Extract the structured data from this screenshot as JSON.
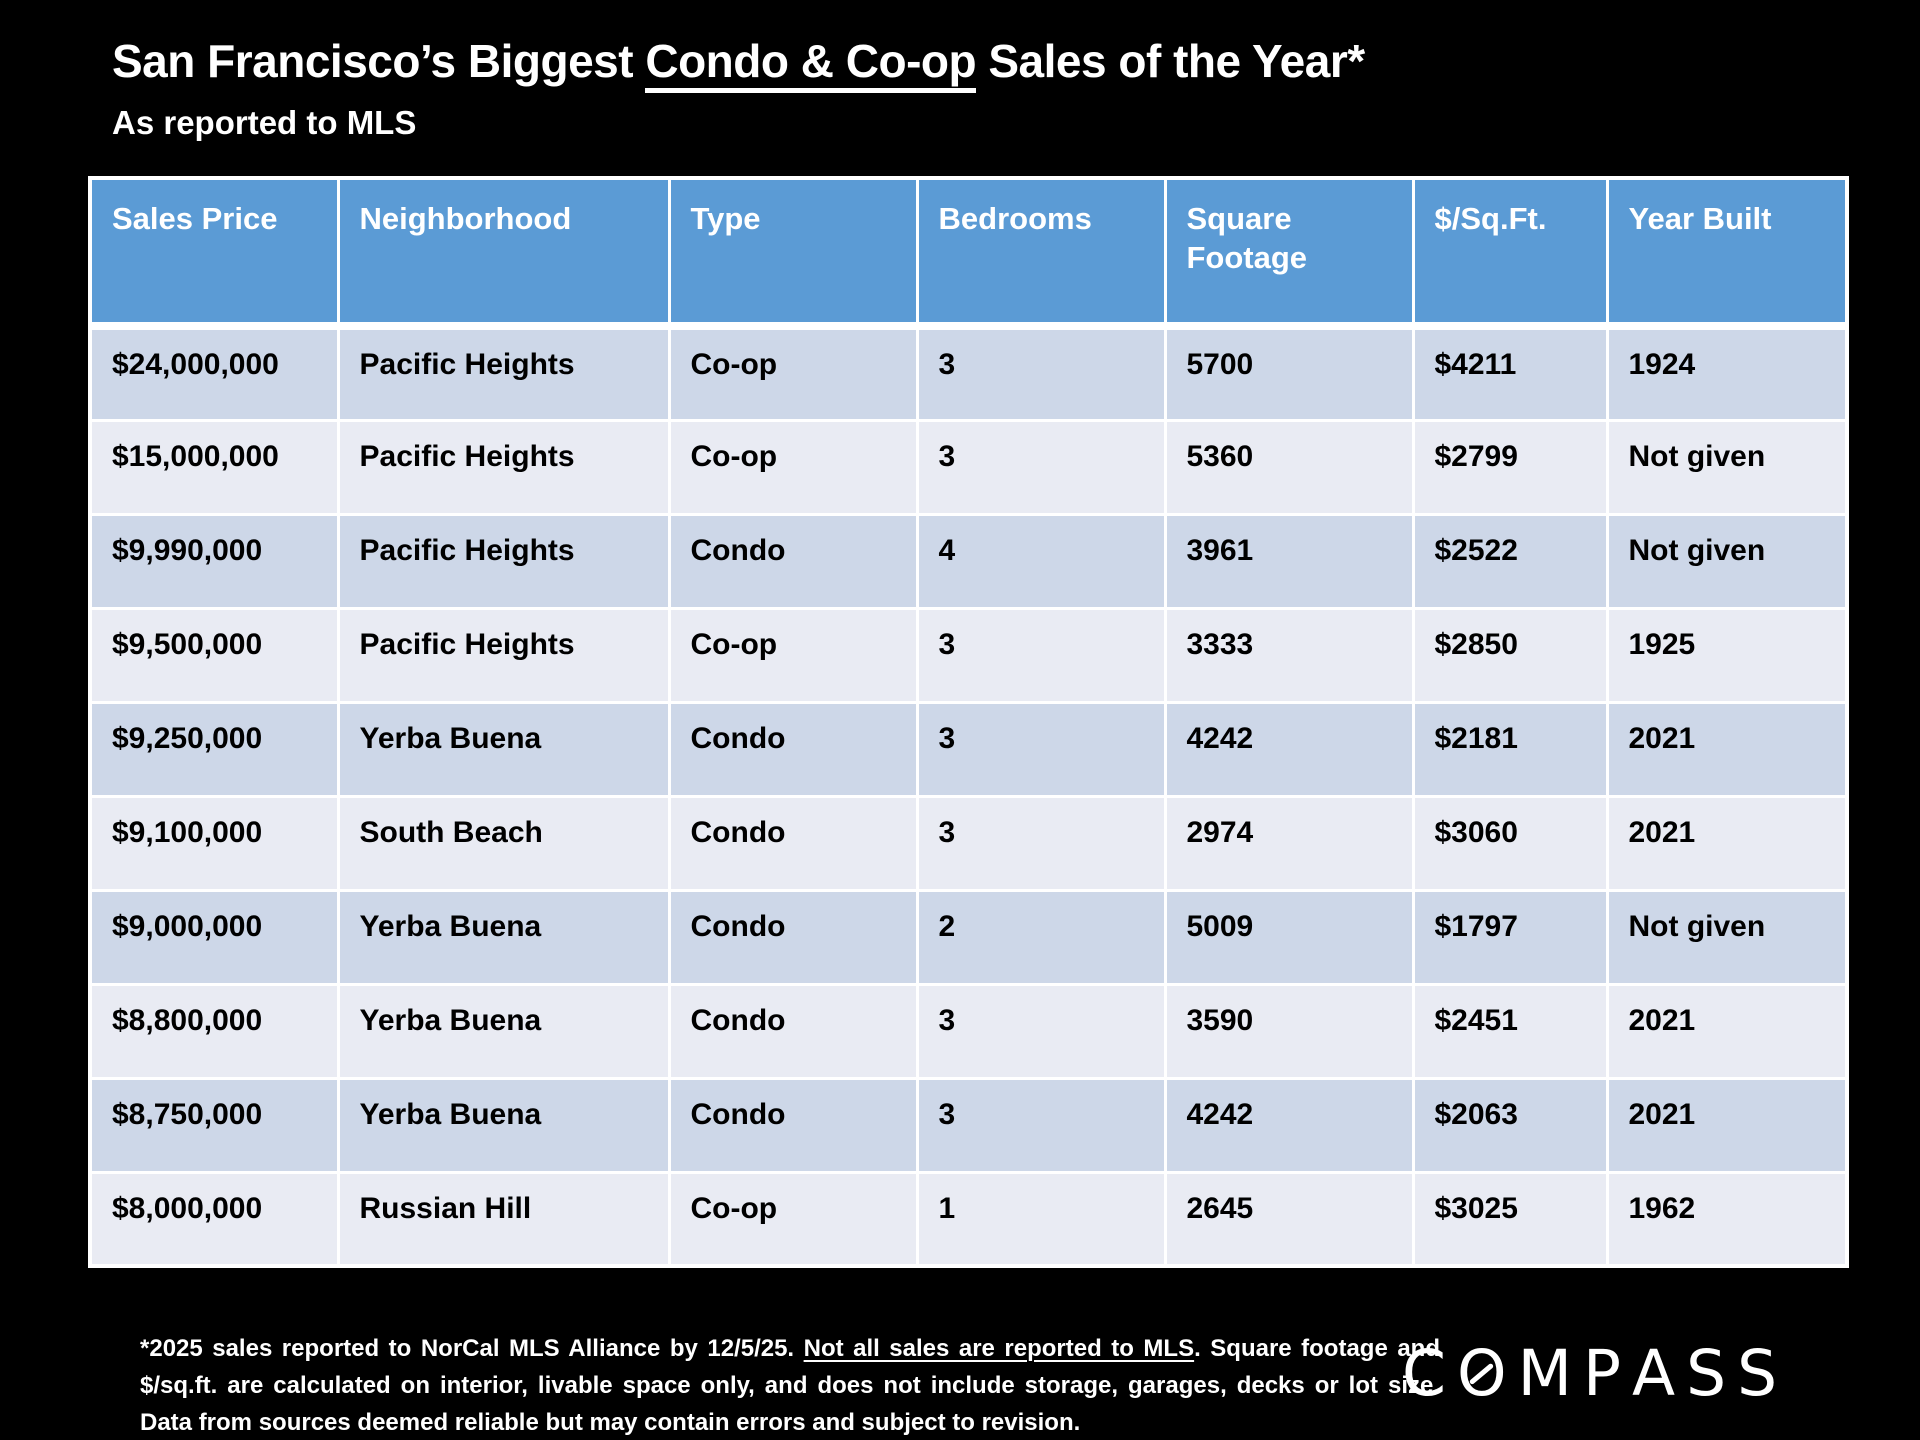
{
  "slide": {
    "title": {
      "prefix": "San Francisco’s Biggest ",
      "underlined": "Condo & Co-op",
      "suffix": " Sales of the Year*"
    },
    "subtitle": "As reported to MLS"
  },
  "chart_data": {
    "type": "table",
    "title": "San Francisco’s Biggest Condo & Co-op Sales of the Year*",
    "subtitle": "As reported to MLS",
    "columns": [
      "Sales Price",
      "Neighborhood",
      "Type",
      "Bedrooms",
      "Square Footage",
      "$/Sq.Ft.",
      "Year Built"
    ],
    "rows": [
      [
        "$24,000,000",
        "Pacific Heights",
        "Co-op",
        "3",
        "5700",
        "$4211",
        "1924"
      ],
      [
        "$15,000,000",
        "Pacific Heights",
        "Co-op",
        "3",
        "5360",
        "$2799",
        "Not given"
      ],
      [
        "$9,990,000",
        "Pacific Heights",
        "Condo",
        "4",
        "3961",
        "$2522",
        "Not given"
      ],
      [
        "$9,500,000",
        "Pacific Heights",
        "Co-op",
        "3",
        "3333",
        "$2850",
        "1925"
      ],
      [
        "$9,250,000",
        "Yerba Buena",
        "Condo",
        "3",
        "4242",
        "$2181",
        "2021"
      ],
      [
        "$9,100,000",
        "South Beach",
        "Condo",
        "3",
        "2974",
        "$3060",
        "2021"
      ],
      [
        "$9,000,000",
        "Yerba Buena",
        "Condo",
        "2",
        "5009",
        "$1797",
        "Not given"
      ],
      [
        "$8,800,000",
        "Yerba Buena",
        "Condo",
        "3",
        "3590",
        "$2451",
        "2021"
      ],
      [
        "$8,750,000",
        "Yerba Buena",
        "Condo",
        "3",
        "4242",
        "$2063",
        "2021"
      ],
      [
        "$8,000,000",
        "Russian Hill",
        "Co-op",
        "1",
        "2645",
        "$3025",
        "1962"
      ]
    ],
    "layout_hints": {
      "header_position": "top",
      "banded_rows": true
    }
  },
  "footnote": {
    "before_underline": "*2025 sales reported to NorCal MLS Alliance by 12/5/25. ",
    "underlined": "Not all sales are reported to MLS",
    "after_underline": ". Square footage and $/sq.ft. are calculated on interior, livable space only, and does not include storage, garages, decks or lot size. Data from sources deemed reliable but may contain errors and subject to revision."
  },
  "branding": {
    "logo_text": "COMPASS"
  },
  "colors": {
    "background": "#000000",
    "header_bg": "#5b9bd5",
    "header_text": "#ffffff",
    "row_odd_bg": "#cdd7e8",
    "row_even_bg": "#e9ebf3",
    "cell_text": "#000000",
    "title_text": "#ffffff"
  }
}
